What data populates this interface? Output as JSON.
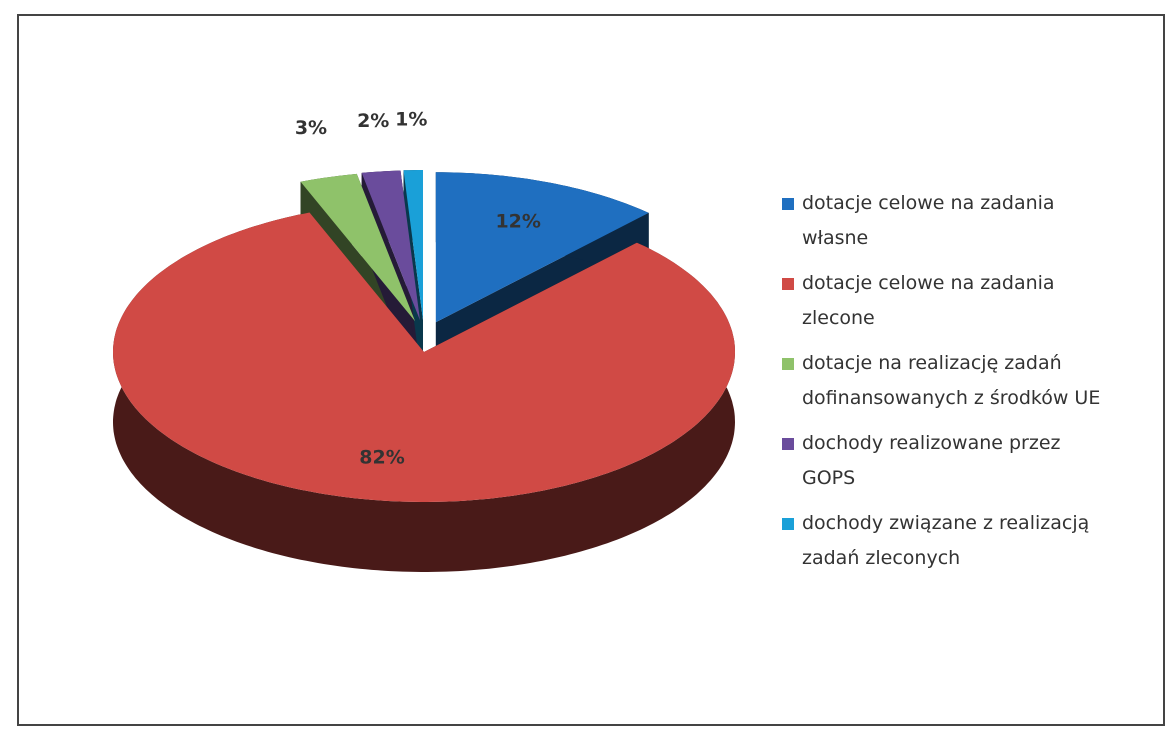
{
  "chart_data": {
    "type": "pie",
    "categories": [
      "dotacje celowe na zadania własne",
      "dotacje celowe na zadania zlecone",
      "dotacje na realizację zadań dofinansowanych z środków UE",
      "dochody realizowane przez GOPS",
      "dochody związane z realizacją zadań zleconych"
    ],
    "values": [
      12,
      82,
      3,
      2,
      1
    ],
    "value_labels": [
      "12%",
      "82%",
      "3%",
      "2%",
      "1%"
    ],
    "colors": [
      "#1f6fc0",
      "#d04a45",
      "#8fc26a",
      "#6a4c9c",
      "#1aa0d8"
    ],
    "legend": "right"
  }
}
